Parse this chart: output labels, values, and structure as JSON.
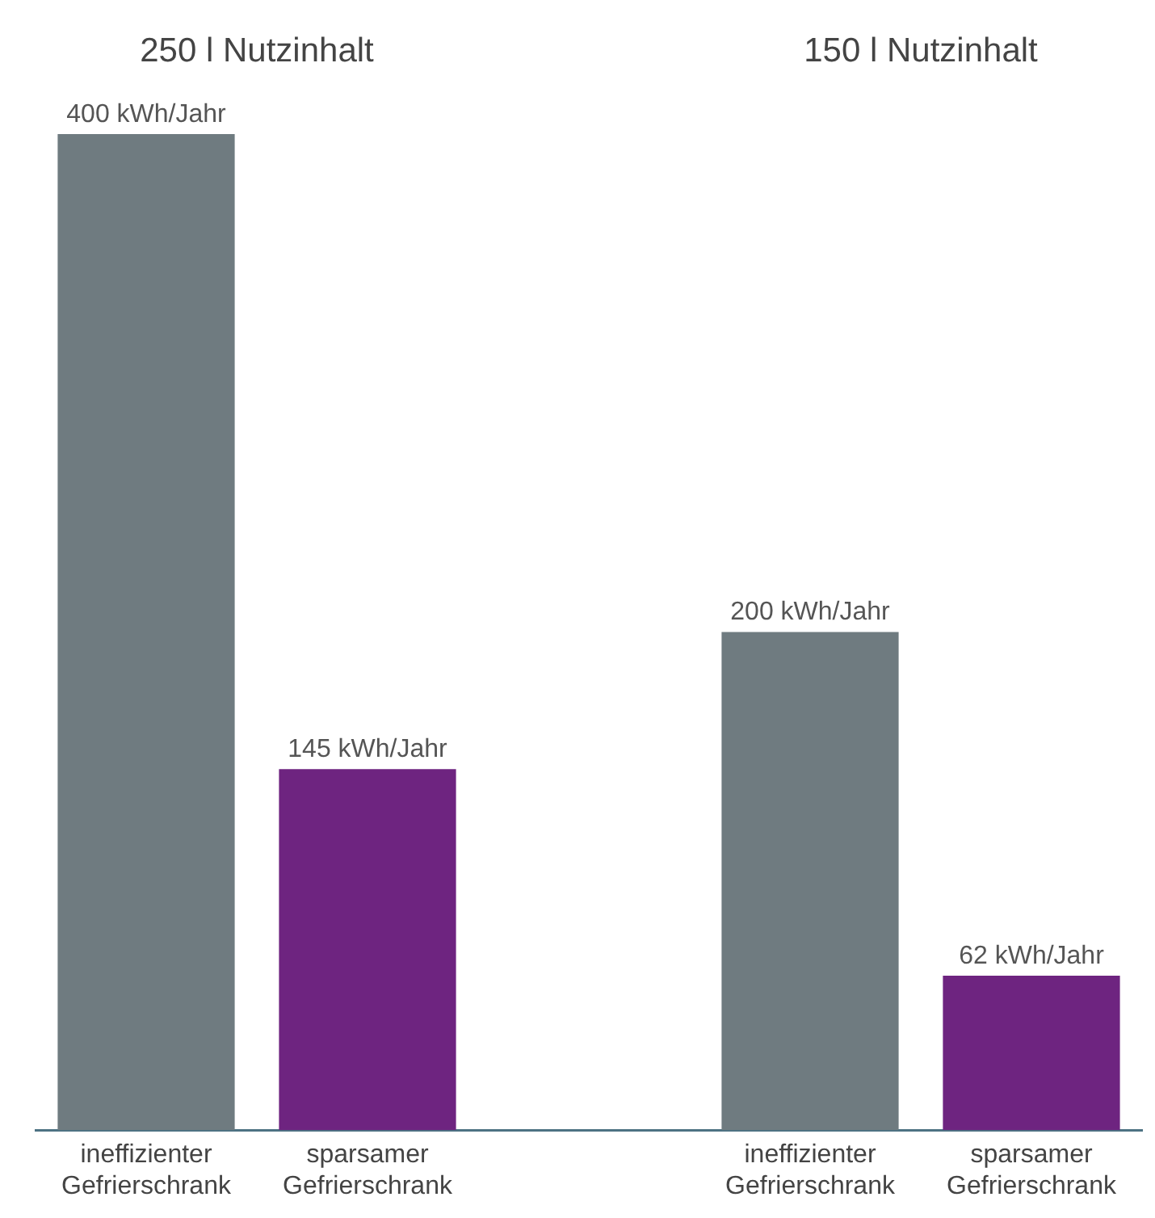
{
  "chart_data": {
    "type": "bar",
    "categories": [
      "ineffizienter Gefrierschrank",
      "sparsamer Gefrierschrank",
      null,
      "ineffizienter Gefrierschrank",
      "sparsamer Gefrierschrank"
    ],
    "values": [
      400,
      145,
      null,
      200,
      62
    ],
    "colors": [
      "#6f7b80",
      "#6e2480",
      "#ffffff",
      "#6f7b80",
      "#6e2480"
    ],
    "value_labels": [
      "400 kWh/Jahr",
      "145 kWh/Jahr",
      null,
      "200 kWh/Jahr",
      "62 kWh/Jahr"
    ],
    "annotations": [
      "250 l Nutzinhalt",
      "150 l Nutzinhalt"
    ],
    "grid": false,
    "legend": false
  }
}
